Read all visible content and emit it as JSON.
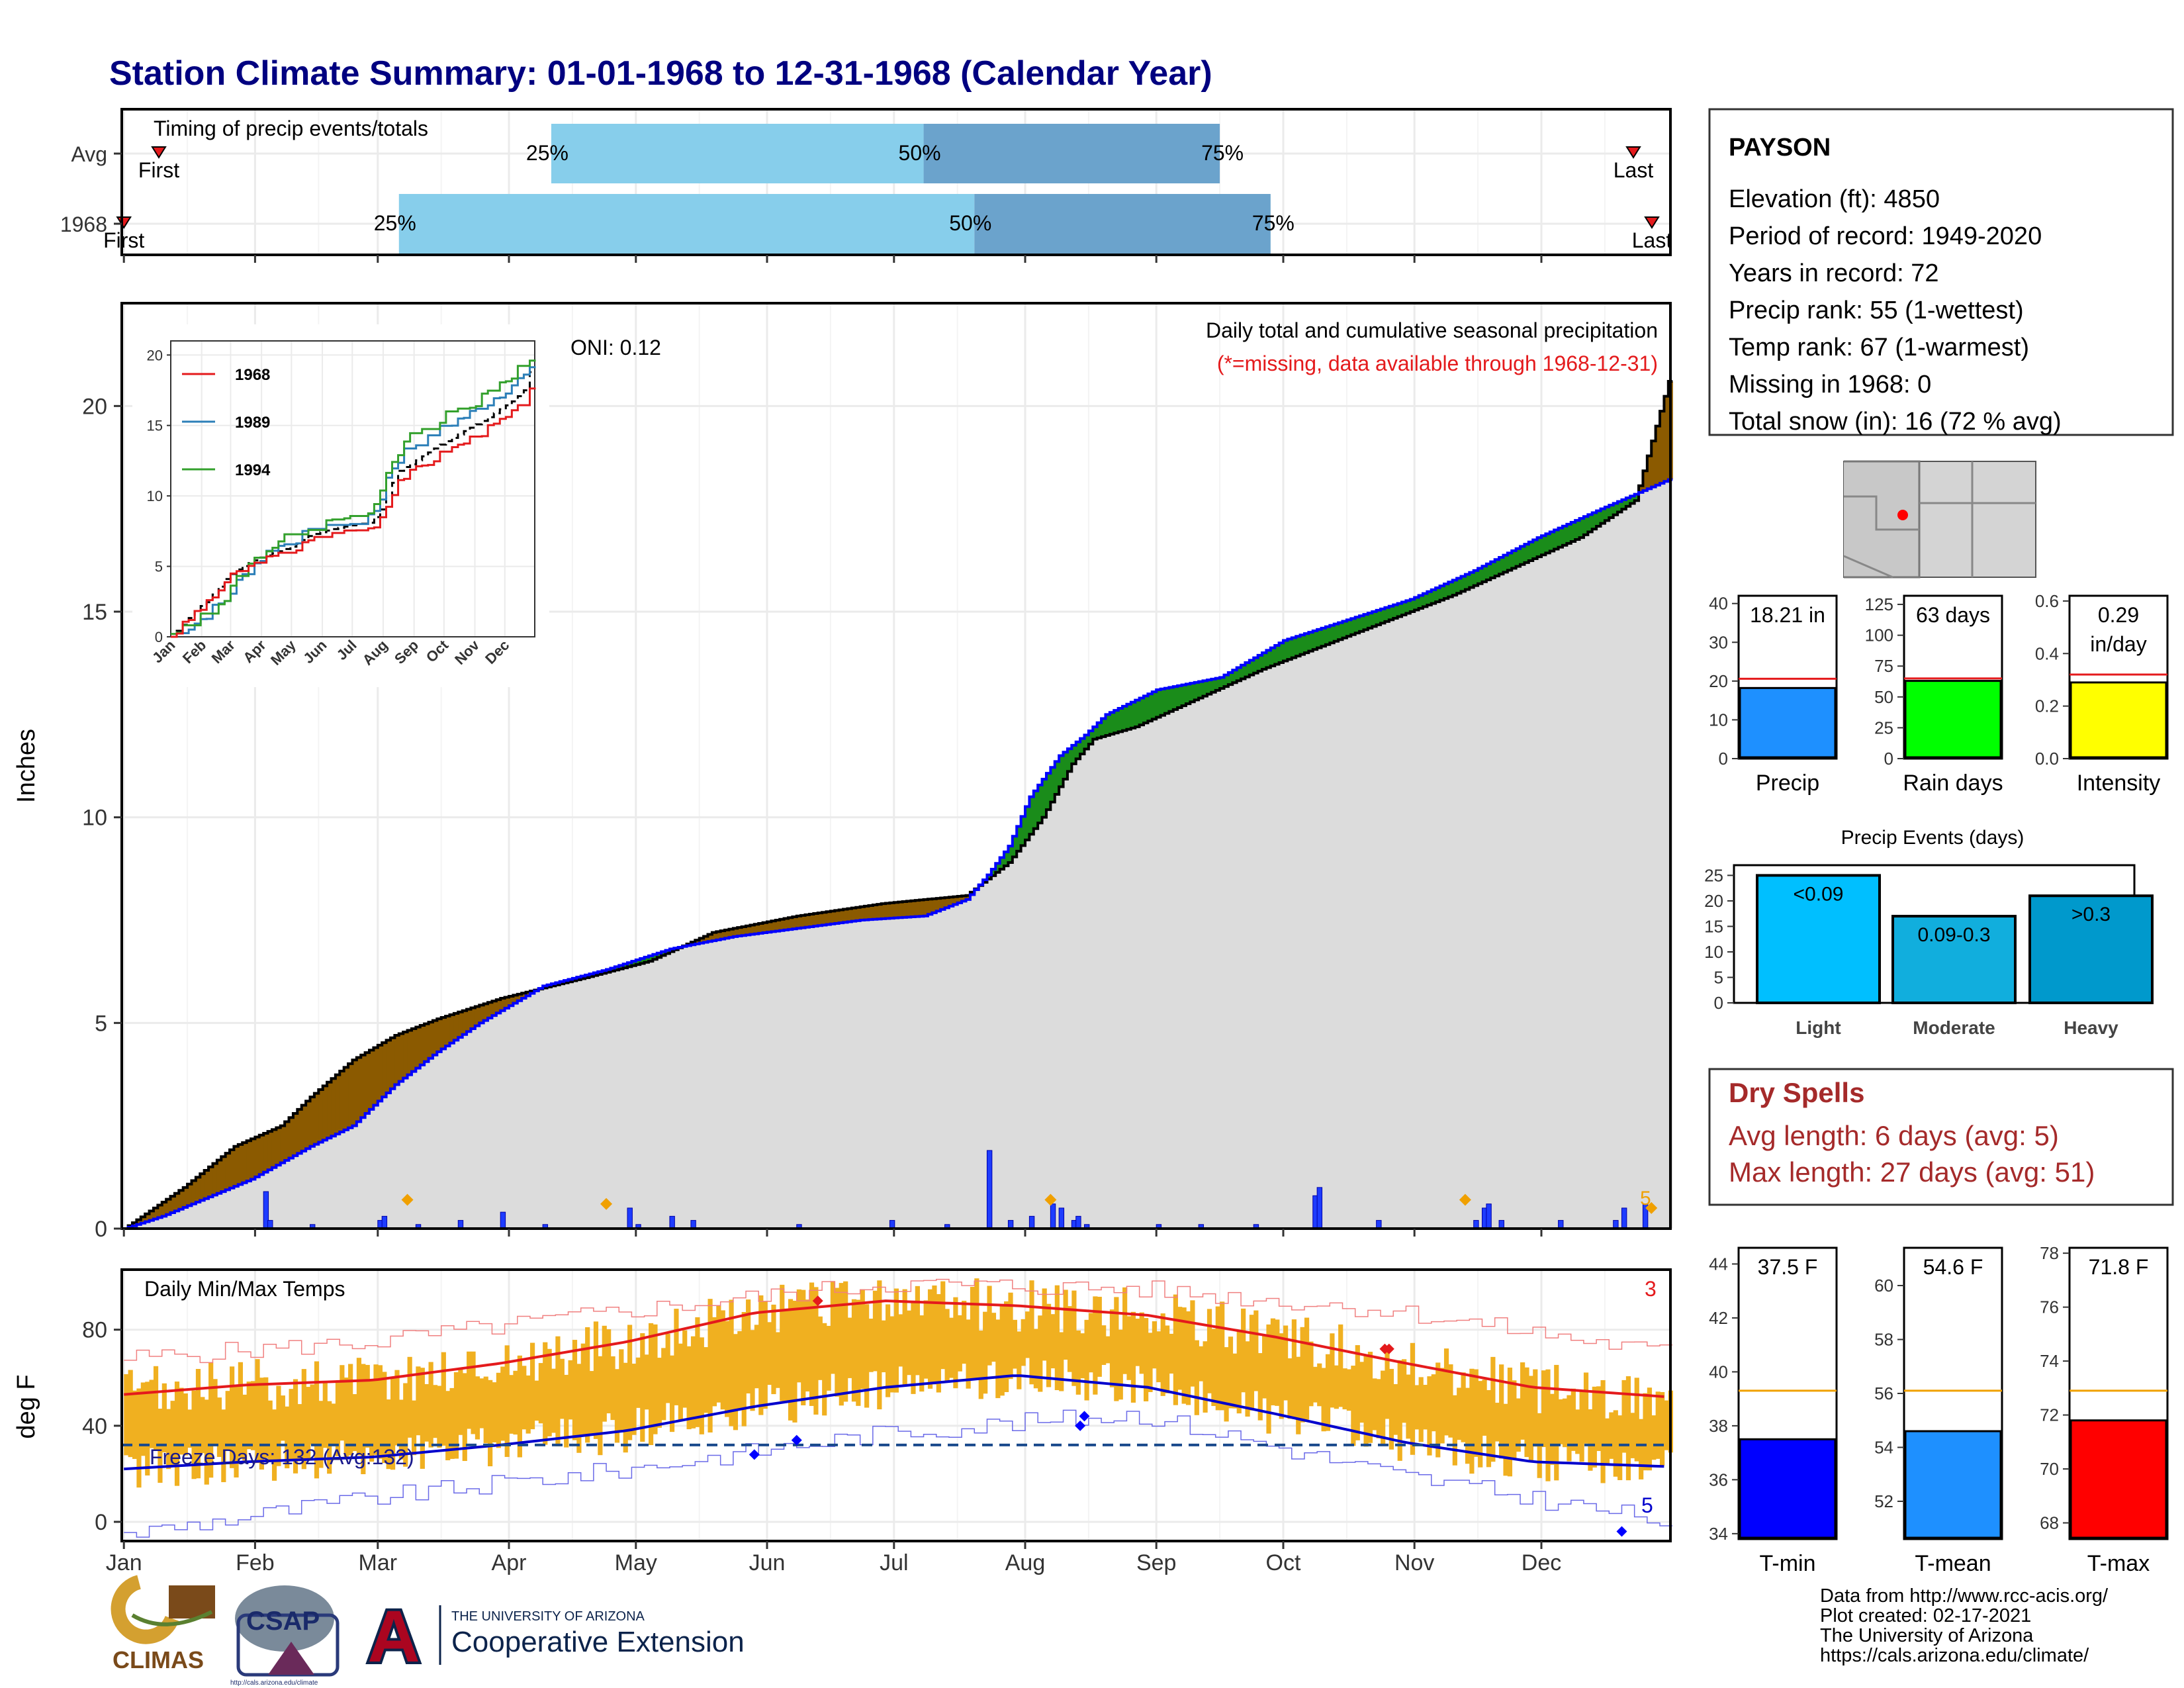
{
  "page": {
    "title": "Station Climate Summary: 01-01-1968 to 12-31-1968 (Calendar Year)"
  },
  "station": {
    "name": "PAYSON",
    "lines": [
      "Elevation (ft): 4850",
      "Period of record: 1949-2020",
      "Years in record: 72",
      "Precip rank: 55 (1-wettest)",
      "Temp rank: 67 (1-warmest)",
      "Missing in 1968: 0",
      "Total snow (in): 16 (72 % avg)"
    ]
  },
  "colors": {
    "title": "#000080",
    "dry": "#A52A2A",
    "surplus": "#8B5A00",
    "deficit": "#1A8C1A",
    "avgline": "#0000FF",
    "precipbar": "#1E3CFF",
    "orange": "#F0A000",
    "tmax": "#E41A1C",
    "tmin": "#0000CC",
    "bars": "#F0B020"
  },
  "dry_spells": {
    "title": "Dry Spells",
    "avg": "Avg length: 6 days (avg: 5)",
    "max": "Max length: 27 days (avg: 51)"
  },
  "footer": {
    "lines": [
      "Data from http://www.rcc-acis.org/",
      "Plot created: 02-17-2021",
      "The University of Arizona",
      "https://cals.arizona.edu/climate/"
    ]
  },
  "logos": {
    "climas": "CLIMAS",
    "csap": "CSAP",
    "csap_url": "http://cals.arizona.edu/climate",
    "ua_small": "THE UNIVERSITY OF ARIZONA",
    "ua_big": "Cooperative Extension",
    "ua_letter": "A"
  },
  "months": [
    "Jan",
    "Feb",
    "Mar",
    "Apr",
    "May",
    "Jun",
    "Jul",
    "Aug",
    "Sep",
    "Oct",
    "Nov",
    "Dec"
  ],
  "chart_data": [
    {
      "type": "bar",
      "title": "Timing of precip events/totals",
      "categories": [
        "Avg",
        "1968"
      ],
      "quantile_labels": [
        "25%",
        "50%",
        "75%"
      ],
      "first_last": [
        "First",
        "Last"
      ],
      "series": [
        {
          "name": "Avg",
          "first_day": 1,
          "q25_day": 102,
          "q50_day": 190,
          "q75_day": 260,
          "last_day": 360
        },
        {
          "name": "1968",
          "first_day": 1,
          "q25_day": 66,
          "q50_day": 202,
          "q75_day": 272,
          "last_day": 363
        }
      ]
    },
    {
      "type": "line",
      "title": "Daily total and cumulative seasonal precipitation",
      "subtitle": "(*=missing, data available through 1968-12-31)",
      "oni": "ONI: 0.12",
      "ylabel": "Inches",
      "ylim": [
        0,
        22.5
      ],
      "yticks": [
        0,
        5,
        10,
        15,
        20
      ],
      "days_in_year": 366,
      "observed_cumulative": [
        [
          1,
          0
        ],
        [
          10,
          0.3
        ],
        [
          31,
          1.2
        ],
        [
          45,
          2.0
        ],
        [
          55,
          2.5
        ],
        [
          65,
          3.5
        ],
        [
          75,
          4.3
        ],
        [
          85,
          5.0
        ],
        [
          100,
          5.9
        ],
        [
          115,
          6.3
        ],
        [
          130,
          6.8
        ],
        [
          145,
          7.1
        ],
        [
          160,
          7.3
        ],
        [
          175,
          7.5
        ],
        [
          190,
          7.6
        ],
        [
          200,
          8.0
        ],
        [
          205,
          8.6
        ],
        [
          210,
          9.3
        ],
        [
          215,
          10.5
        ],
        [
          222,
          11.5
        ],
        [
          228,
          12.0
        ],
        [
          233,
          12.5
        ],
        [
          245,
          13.1
        ],
        [
          260,
          13.4
        ],
        [
          275,
          14.3
        ],
        [
          290,
          14.8
        ],
        [
          305,
          15.3
        ],
        [
          320,
          16.0
        ],
        [
          335,
          16.8
        ],
        [
          350,
          17.5
        ],
        [
          366,
          18.21
        ]
      ],
      "average_cumulative": [
        [
          1,
          0
        ],
        [
          15,
          1.0
        ],
        [
          27,
          2.0
        ],
        [
          38,
          2.5
        ],
        [
          45,
          3.2
        ],
        [
          55,
          4.1
        ],
        [
          65,
          4.7
        ],
        [
          75,
          5.1
        ],
        [
          90,
          5.6
        ],
        [
          110,
          6.1
        ],
        [
          125,
          6.5
        ],
        [
          140,
          7.2
        ],
        [
          160,
          7.6
        ],
        [
          180,
          7.9
        ],
        [
          200,
          8.1
        ],
        [
          210,
          8.9
        ],
        [
          218,
          10.0
        ],
        [
          225,
          11.3
        ],
        [
          230,
          11.9
        ],
        [
          240,
          12.2
        ],
        [
          255,
          12.9
        ],
        [
          270,
          13.6
        ],
        [
          285,
          14.2
        ],
        [
          300,
          14.8
        ],
        [
          315,
          15.4
        ],
        [
          330,
          16.1
        ],
        [
          345,
          16.8
        ],
        [
          358,
          17.7
        ],
        [
          366,
          20.6
        ]
      ],
      "daily_observed": [
        [
          34,
          0.9
        ],
        [
          35,
          0.2
        ],
        [
          45,
          0.1
        ],
        [
          61,
          0.2
        ],
        [
          62,
          0.3
        ],
        [
          70,
          0.1
        ],
        [
          80,
          0.2
        ],
        [
          90,
          0.4
        ],
        [
          100,
          0.1
        ],
        [
          120,
          0.5
        ],
        [
          122,
          0.1
        ],
        [
          130,
          0.3
        ],
        [
          135,
          0.2
        ],
        [
          160,
          0.1
        ],
        [
          182,
          0.2
        ],
        [
          195,
          0.1
        ],
        [
          205,
          1.9
        ],
        [
          210,
          0.2
        ],
        [
          215,
          0.3
        ],
        [
          220,
          0.6
        ],
        [
          222,
          0.5
        ],
        [
          225,
          0.2
        ],
        [
          226,
          0.3
        ],
        [
          228,
          0.1
        ],
        [
          245,
          0.1
        ],
        [
          255,
          0.1
        ],
        [
          268,
          0.1
        ],
        [
          282,
          0.8
        ],
        [
          283,
          1.0
        ],
        [
          297,
          0.2
        ],
        [
          320,
          0.2
        ],
        [
          322,
          0.5
        ],
        [
          323,
          0.6
        ],
        [
          326,
          0.2
        ],
        [
          340,
          0.2
        ],
        [
          353,
          0.2
        ],
        [
          355,
          0.5
        ],
        [
          360,
          0.6
        ]
      ],
      "snow_markers": [
        [
          68,
          0.7
        ],
        [
          115,
          0.6
        ],
        [
          220,
          0.7
        ],
        [
          318,
          0.7
        ],
        [
          362,
          0.5
        ]
      ],
      "snow_label": "5"
    },
    {
      "type": "line",
      "title": "Daily Min/Max Temps",
      "ylabel": "deg F",
      "ylim": [
        -8,
        105
      ],
      "yticks": [
        0,
        40,
        80
      ],
      "freeze_label": "Freeze Days: 132 (Avg:132)",
      "freeze_line": 32,
      "record_high_count": "3",
      "record_low_count": "5",
      "avg_tmax": [
        [
          1,
          53
        ],
        [
          30,
          57
        ],
        [
          60,
          59
        ],
        [
          90,
          66
        ],
        [
          120,
          75
        ],
        [
          150,
          87
        ],
        [
          181,
          92
        ],
        [
          212,
          90
        ],
        [
          243,
          86
        ],
        [
          273,
          77
        ],
        [
          304,
          66
        ],
        [
          334,
          56
        ],
        [
          366,
          52
        ]
      ],
      "avg_tmin": [
        [
          1,
          22
        ],
        [
          30,
          25
        ],
        [
          60,
          27
        ],
        [
          90,
          32
        ],
        [
          120,
          38
        ],
        [
          150,
          48
        ],
        [
          181,
          56
        ],
        [
          212,
          61
        ],
        [
          243,
          56
        ],
        [
          273,
          45
        ],
        [
          304,
          33
        ],
        [
          334,
          25
        ],
        [
          366,
          23
        ]
      ],
      "record_max": [
        [
          1,
          68
        ],
        [
          60,
          75
        ],
        [
          120,
          88
        ],
        [
          180,
          99
        ],
        [
          240,
          97
        ],
        [
          300,
          88
        ],
        [
          366,
          70
        ]
      ],
      "record_min": [
        [
          1,
          -5
        ],
        [
          60,
          10
        ],
        [
          120,
          22
        ],
        [
          180,
          37
        ],
        [
          240,
          45
        ],
        [
          300,
          20
        ],
        [
          366,
          0
        ]
      ],
      "record_high_days": [
        [
          165,
          92
        ],
        [
          299,
          72
        ],
        [
          300,
          72
        ]
      ],
      "record_low_days": [
        [
          150,
          28
        ],
        [
          160,
          34
        ],
        [
          227,
          40
        ],
        [
          228,
          44
        ],
        [
          355,
          -4
        ]
      ]
    },
    {
      "type": "bar",
      "title": "Precip",
      "value_label": "18.21 in",
      "value": 18.21,
      "average": 20.6,
      "ylim": [
        0,
        42
      ],
      "yticks": [
        0,
        10,
        20,
        30,
        40
      ]
    },
    {
      "type": "bar",
      "title": "Rain days",
      "value_label": "63 days",
      "value": 63,
      "average": 65,
      "ylim": [
        0,
        132
      ],
      "yticks": [
        0,
        25,
        50,
        75,
        100,
        125
      ]
    },
    {
      "type": "bar",
      "title": "Intensity",
      "value_label": "0.29",
      "value_label2": "in/day",
      "value": 0.29,
      "average": 0.32,
      "ylim": [
        0,
        0.62
      ],
      "yticks": [
        "0.0",
        "0.2",
        "0.4",
        "0.6"
      ]
    },
    {
      "type": "bar",
      "title": "Precip Events (days)",
      "categories": [
        "Light",
        "Moderate",
        "Heavy"
      ],
      "bar_labels": [
        "<0.09",
        "0.09-0.3",
        ">0.3"
      ],
      "values": [
        25,
        17,
        21
      ],
      "ylim": [
        0,
        27
      ],
      "yticks": [
        0,
        5,
        10,
        15,
        20,
        25
      ]
    },
    {
      "type": "bar",
      "title": "T-min",
      "value_label": "37.5 F",
      "value": 37.5,
      "average": 39.3,
      "ylim": [
        33.8,
        44.6
      ],
      "yticks": [
        34,
        36,
        38,
        40,
        42,
        44
      ]
    },
    {
      "type": "bar",
      "title": "T-mean",
      "value_label": "54.6 F",
      "value": 54.6,
      "average": 56.1,
      "ylim": [
        50.6,
        61.4
      ],
      "yticks": [
        52,
        54,
        56,
        58,
        60
      ]
    },
    {
      "type": "bar",
      "title": "T-max",
      "value_label": "71.8 F",
      "value": 71.8,
      "average": 72.9,
      "ylim": [
        67.4,
        78.2
      ],
      "yticks": [
        68,
        70,
        72,
        74,
        76,
        78
      ]
    }
  ],
  "inset": {
    "type": "line",
    "series": [
      {
        "name": "1968",
        "color": "#E41A1C"
      },
      {
        "name": "1989",
        "color": "#2C7FB8"
      },
      {
        "name": "1994",
        "color": "#33A02C"
      }
    ],
    "ylim": [
      0,
      21
    ],
    "yticks": [
      0,
      5,
      10,
      15,
      20
    ],
    "months": [
      "Jan",
      "Feb",
      "Mar",
      "Apr",
      "May",
      "Jun",
      "Jul",
      "Aug",
      "Sep",
      "Oct",
      "Nov",
      "Dec"
    ]
  }
}
